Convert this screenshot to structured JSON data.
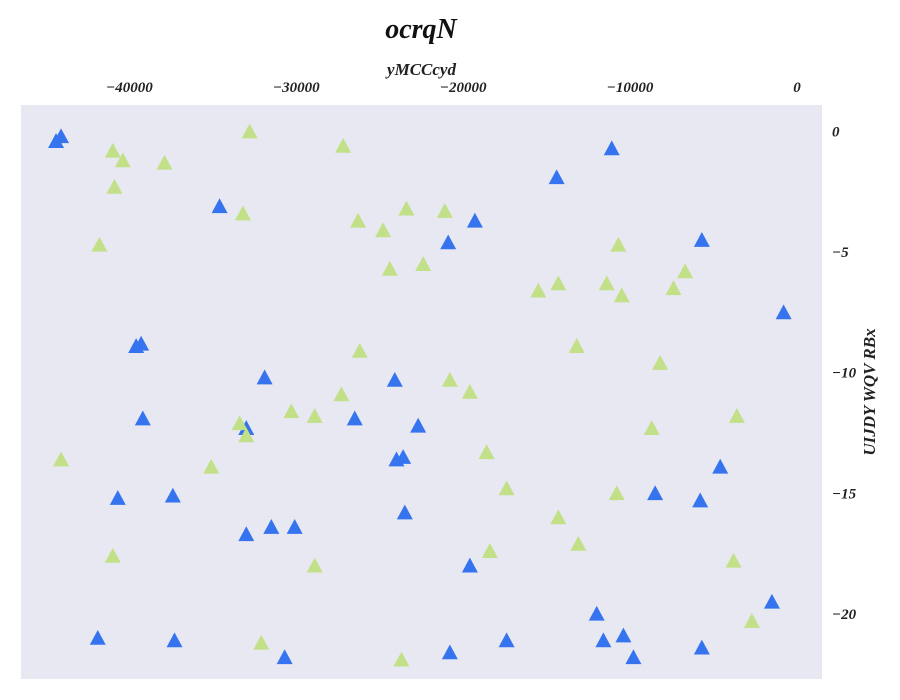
{
  "chart_data": {
    "type": "scatter",
    "title": "ocrqN",
    "xlabel": "yMCCcyd",
    "ylabel": "UIJDY WQV RBx",
    "xlim": [
      -46500,
      1500
    ],
    "ylim": [
      -22.7,
      1.1
    ],
    "x_ticks": [
      -40000,
      -30000,
      -20000,
      -10000,
      0
    ],
    "x_tick_labels": [
      "−40000",
      "−30000",
      "−20000",
      "−10000",
      "0"
    ],
    "y_ticks": [
      0,
      -5,
      -10,
      -15,
      -20
    ],
    "y_tick_labels": [
      "0",
      "−5",
      "−10",
      "−15",
      "−20"
    ],
    "x_axis_position": "top",
    "y_axis_position": "right",
    "grid": false,
    "legend": "none",
    "background": "#e8e8f2",
    "marker": "triangle-up",
    "series": [
      {
        "color": "#3674ef",
        "points": [
          [
            -44400,
            -0.4
          ],
          [
            -44100,
            -0.2
          ],
          [
            -34600,
            -3.1
          ],
          [
            -14400,
            -1.9
          ],
          [
            -11100,
            -0.7
          ],
          [
            -19300,
            -3.7
          ],
          [
            -20900,
            -4.6
          ],
          [
            -5700,
            -4.5
          ],
          [
            -800,
            -7.5
          ],
          [
            -39600,
            -8.9
          ],
          [
            -39300,
            -8.8
          ],
          [
            -31900,
            -10.2
          ],
          [
            -24100,
            -10.3
          ],
          [
            -39200,
            -11.9
          ],
          [
            -33000,
            -12.3
          ],
          [
            -26500,
            -11.9
          ],
          [
            -22700,
            -12.2
          ],
          [
            -24000,
            -13.6
          ],
          [
            -23600,
            -13.5
          ],
          [
            -4600,
            -13.9
          ],
          [
            -8500,
            -15.0
          ],
          [
            -40700,
            -15.2
          ],
          [
            -37400,
            -15.1
          ],
          [
            -5800,
            -15.3
          ],
          [
            -23500,
            -15.8
          ],
          [
            -33000,
            -16.7
          ],
          [
            -31500,
            -16.4
          ],
          [
            -30100,
            -16.4
          ],
          [
            -19600,
            -18.0
          ],
          [
            -12000,
            -20.0
          ],
          [
            -1500,
            -19.5
          ],
          [
            -41900,
            -21.0
          ],
          [
            -37300,
            -21.1
          ],
          [
            -11600,
            -21.1
          ],
          [
            -10400,
            -20.9
          ],
          [
            -9800,
            -21.8
          ],
          [
            -5700,
            -21.4
          ],
          [
            -30700,
            -21.8
          ],
          [
            -20800,
            -21.6
          ],
          [
            -17400,
            -21.1
          ]
        ]
      },
      {
        "color": "#c2e087",
        "points": [
          [
            -41000,
            -0.8
          ],
          [
            -40400,
            -1.2
          ],
          [
            -37900,
            -1.3
          ],
          [
            -32800,
            0.0
          ],
          [
            -27200,
            -0.6
          ],
          [
            -40900,
            -2.3
          ],
          [
            -33200,
            -3.4
          ],
          [
            -26300,
            -3.7
          ],
          [
            -24800,
            -4.1
          ],
          [
            -23400,
            -3.2
          ],
          [
            -21100,
            -3.3
          ],
          [
            -41800,
            -4.7
          ],
          [
            -24400,
            -5.7
          ],
          [
            -22400,
            -5.5
          ],
          [
            -10700,
            -4.7
          ],
          [
            -6700,
            -5.8
          ],
          [
            -7400,
            -6.5
          ],
          [
            -14300,
            -6.3
          ],
          [
            -15500,
            -6.6
          ],
          [
            -11400,
            -6.3
          ],
          [
            -10500,
            -6.8
          ],
          [
            -26200,
            -9.1
          ],
          [
            -13200,
            -8.9
          ],
          [
            -8200,
            -9.6
          ],
          [
            -20800,
            -10.3
          ],
          [
            -19600,
            -10.8
          ],
          [
            -27300,
            -10.9
          ],
          [
            -30300,
            -11.6
          ],
          [
            -28900,
            -11.8
          ],
          [
            -33400,
            -12.1
          ],
          [
            -33000,
            -12.6
          ],
          [
            -3600,
            -11.8
          ],
          [
            -8700,
            -12.3
          ],
          [
            -44100,
            -13.6
          ],
          [
            -35100,
            -13.9
          ],
          [
            -18600,
            -13.3
          ],
          [
            -17400,
            -14.8
          ],
          [
            -10800,
            -15.0
          ],
          [
            -14300,
            -16.0
          ],
          [
            -13100,
            -17.1
          ],
          [
            -41000,
            -17.6
          ],
          [
            -18400,
            -17.4
          ],
          [
            -3800,
            -17.8
          ],
          [
            -28900,
            -18.0
          ],
          [
            -2700,
            -20.3
          ],
          [
            -32100,
            -21.2
          ],
          [
            -23700,
            -21.9
          ]
        ]
      }
    ]
  }
}
